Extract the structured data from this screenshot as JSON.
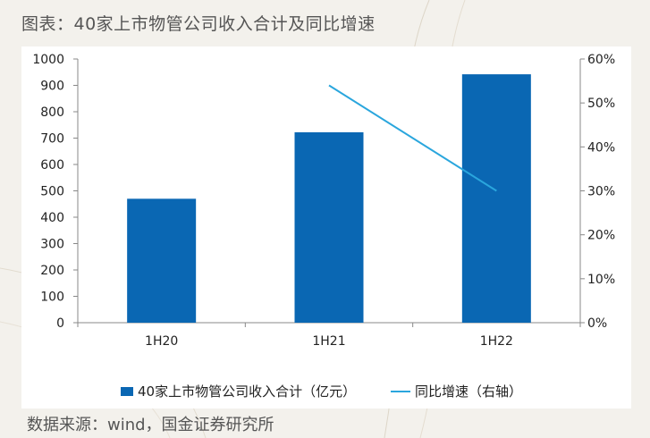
{
  "caption": "图表：40家上市物管公司收入合计及同比增速",
  "source": "数据来源：wind，国金证券研究所",
  "colors": {
    "bar": "#0a67b3",
    "line": "#2aa6dd"
  },
  "chart_data": {
    "type": "bar",
    "categories": [
      "1H20",
      "1H21",
      "1H22"
    ],
    "series": [
      {
        "name": "40家上市物管公司收入合计（亿元）",
        "type": "bar",
        "axis": "left",
        "values": [
          470,
          722,
          942
        ]
      },
      {
        "name": "同比增速（右轴）",
        "type": "line",
        "axis": "right",
        "values": [
          null,
          0.54,
          0.3
        ]
      }
    ],
    "left_axis": {
      "ylim": [
        0,
        1000
      ],
      "ticks": [
        "0",
        "100",
        "200",
        "300",
        "400",
        "500",
        "600",
        "700",
        "800",
        "900",
        "1000"
      ]
    },
    "right_axis": {
      "ylim": [
        0,
        0.6
      ],
      "ticks": [
        "0%",
        "10%",
        "20%",
        "30%",
        "40%",
        "50%",
        "60%"
      ]
    },
    "legend_position": "bottom",
    "grid": false
  }
}
